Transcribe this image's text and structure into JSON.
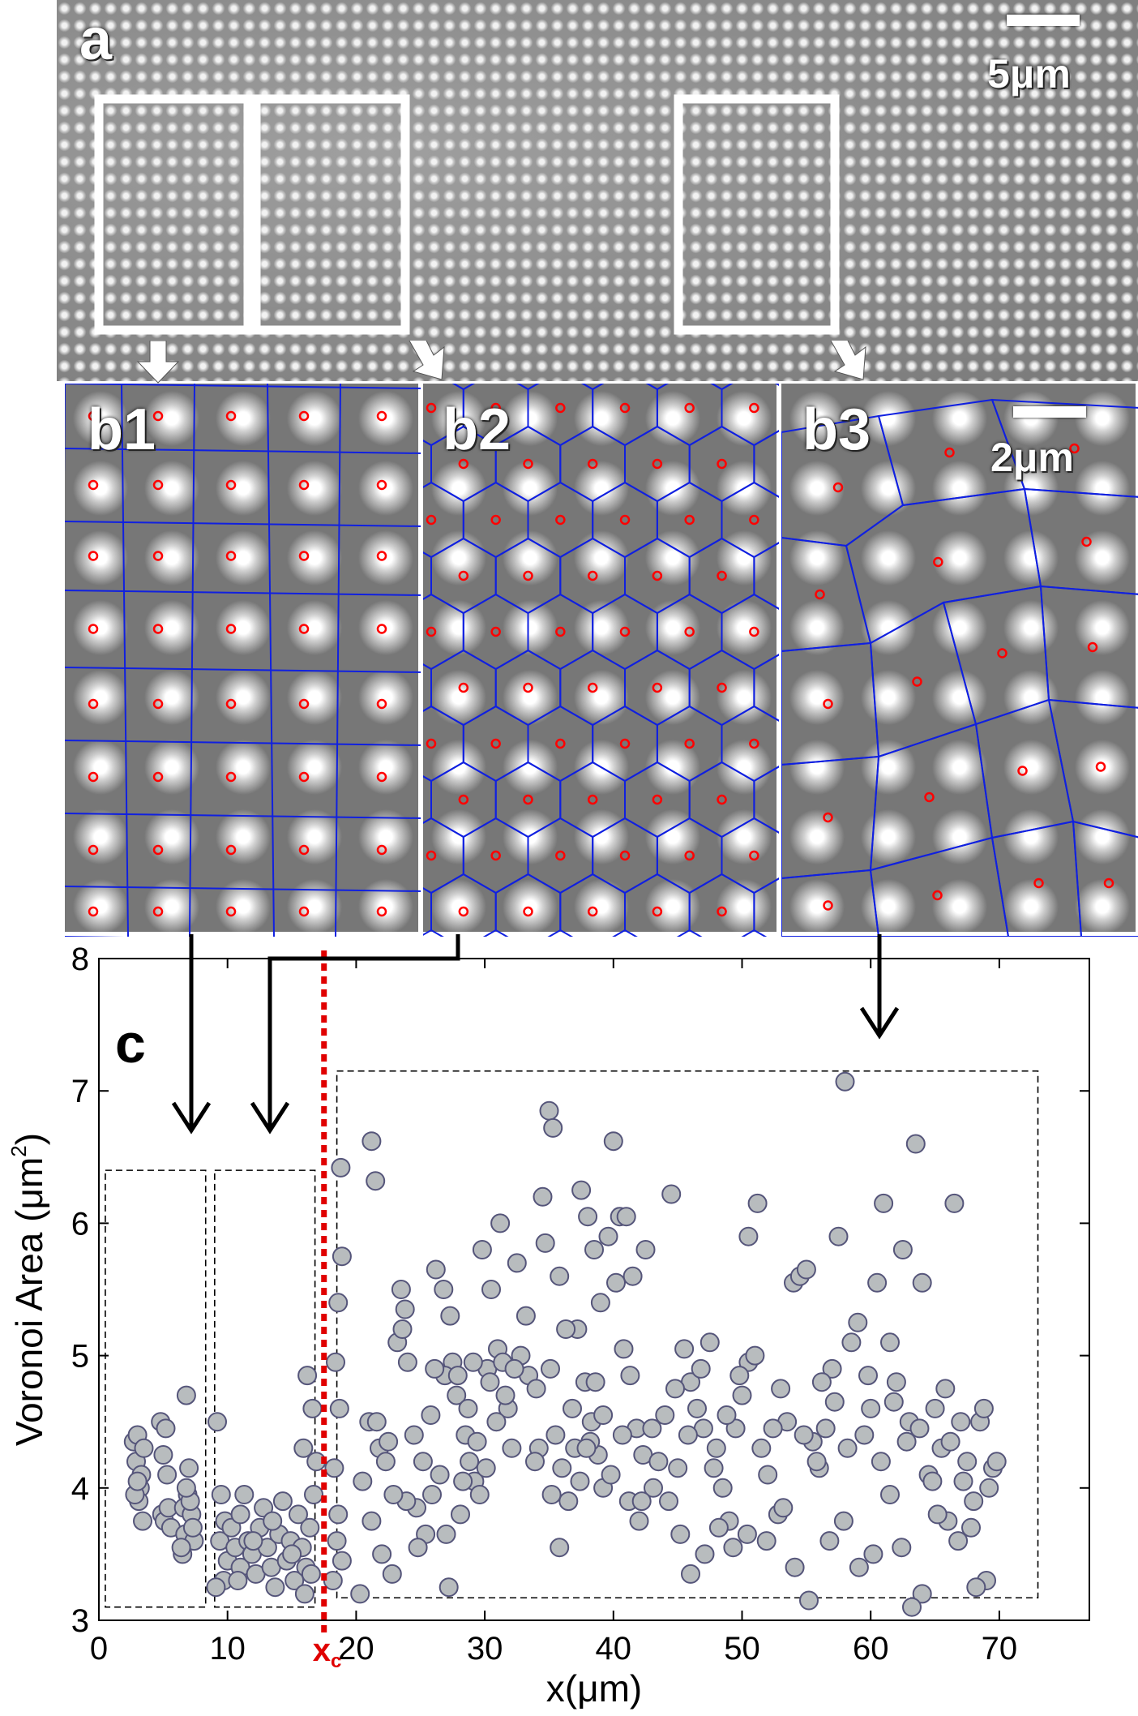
{
  "panel_a": {
    "label": "a",
    "scale_label": "5μm"
  },
  "panel_b": {
    "labels": [
      "b1",
      "b2",
      "b3"
    ],
    "scale_label": "2μm"
  },
  "panel_c": {
    "label": "c",
    "xc_label": "x",
    "xc_subscript": "c"
  },
  "colors": {
    "marker_fill": "#b8bcbe",
    "marker_edge": "#55557a",
    "xc_line": "#e00000",
    "voronoi_edge": "#1020e0",
    "center_marker": "#ff0000"
  },
  "chart_data": {
    "type": "scatter",
    "xlabel": "x(μm)",
    "ylabel_main": "Voronoi Area (μm",
    "ylabel_sup": "2",
    "ylabel_close": ")",
    "xlim": [
      0,
      77
    ],
    "ylim": [
      3,
      8
    ],
    "xticks": [
      0,
      10,
      20,
      30,
      40,
      50,
      60,
      70
    ],
    "yticks": [
      3,
      4,
      5,
      6,
      7,
      8
    ],
    "xc": 17.5,
    "regions": [
      {
        "x": [
          0.5,
          8.3
        ],
        "y": [
          3.1,
          6.4
        ]
      },
      {
        "x": [
          9.0,
          16.8
        ],
        "y": [
          3.1,
          6.4
        ]
      },
      {
        "x": [
          18.5,
          73.0
        ],
        "y": [
          3.17,
          7.15
        ]
      }
    ],
    "points": [
      [
        2.7,
        4.35
      ],
      [
        3.0,
        4.4
      ],
      [
        2.9,
        4.2
      ],
      [
        3.2,
        4.0
      ],
      [
        3.1,
        3.9
      ],
      [
        3.4,
        3.75
      ],
      [
        3.3,
        4.1
      ],
      [
        2.8,
        3.95
      ],
      [
        3.5,
        4.3
      ],
      [
        3.0,
        4.05
      ],
      [
        4.8,
        4.5
      ],
      [
        5.2,
        4.45
      ],
      [
        4.9,
        3.8
      ],
      [
        5.1,
        3.75
      ],
      [
        5.4,
        3.85
      ],
      [
        5.6,
        3.7
      ],
      [
        5.0,
        4.25
      ],
      [
        5.3,
        4.1
      ],
      [
        6.8,
        4.7
      ],
      [
        7.0,
        4.15
      ],
      [
        6.9,
        3.95
      ],
      [
        6.6,
        3.85
      ],
      [
        7.2,
        3.8
      ],
      [
        6.7,
        3.65
      ],
      [
        6.5,
        3.5
      ],
      [
        7.4,
        3.6
      ],
      [
        7.1,
        3.9
      ],
      [
        6.4,
        3.55
      ],
      [
        7.3,
        3.7
      ],
      [
        6.8,
        4.0
      ],
      [
        9.2,
        4.5
      ],
      [
        9.5,
        3.95
      ],
      [
        9.8,
        3.75
      ],
      [
        9.4,
        3.6
      ],
      [
        10.0,
        3.45
      ],
      [
        9.7,
        3.3
      ],
      [
        10.3,
        3.7
      ],
      [
        9.1,
        3.25
      ],
      [
        10.6,
        3.55
      ],
      [
        11.0,
        3.4
      ],
      [
        11.3,
        3.95
      ],
      [
        11.0,
        3.8
      ],
      [
        11.6,
        3.6
      ],
      [
        11.9,
        3.5
      ],
      [
        12.2,
        3.35
      ],
      [
        12.5,
        3.7
      ],
      [
        12.8,
        3.85
      ],
      [
        13.1,
        3.55
      ],
      [
        13.4,
        3.4
      ],
      [
        13.7,
        3.25
      ],
      [
        14.0,
        3.65
      ],
      [
        14.3,
        3.9
      ],
      [
        14.6,
        3.45
      ],
      [
        14.9,
        3.6
      ],
      [
        15.2,
        3.3
      ],
      [
        15.5,
        3.8
      ],
      [
        15.8,
        3.55
      ],
      [
        16.1,
        3.4
      ],
      [
        16.4,
        3.7
      ],
      [
        16.7,
        3.95
      ],
      [
        16.2,
        4.85
      ],
      [
        16.6,
        4.6
      ],
      [
        16.9,
        4.2
      ],
      [
        15.9,
        4.3
      ],
      [
        16.5,
        3.35
      ],
      [
        16.0,
        3.2
      ],
      [
        15.0,
        3.5
      ],
      [
        13.5,
        3.75
      ],
      [
        12.0,
        3.6
      ],
      [
        10.8,
        3.3
      ],
      [
        18.8,
        6.42
      ],
      [
        18.9,
        5.75
      ],
      [
        18.6,
        5.4
      ],
      [
        18.4,
        4.95
      ],
      [
        18.7,
        4.6
      ],
      [
        18.3,
        4.15
      ],
      [
        18.5,
        3.6
      ],
      [
        18.2,
        3.3
      ],
      [
        18.9,
        3.45
      ],
      [
        18.6,
        3.8
      ],
      [
        21.2,
        6.62
      ],
      [
        21.5,
        6.32
      ],
      [
        23.5,
        5.5
      ],
      [
        23.8,
        5.35
      ],
      [
        23.2,
        5.1
      ],
      [
        24.0,
        4.95
      ],
      [
        23.6,
        5.2
      ],
      [
        21.0,
        4.5
      ],
      [
        21.8,
        4.3
      ],
      [
        22.5,
        4.35
      ],
      [
        20.5,
        4.05
      ],
      [
        21.2,
        3.75
      ],
      [
        22.0,
        3.5
      ],
      [
        22.8,
        3.35
      ],
      [
        20.3,
        3.2
      ],
      [
        24.5,
        4.4
      ],
      [
        25.2,
        4.2
      ],
      [
        25.8,
        4.55
      ],
      [
        26.5,
        4.1
      ],
      [
        27.0,
        3.65
      ],
      [
        26.2,
        5.65
      ],
      [
        26.8,
        5.5
      ],
      [
        27.3,
        5.3
      ],
      [
        27.5,
        4.95
      ],
      [
        26.9,
        4.85
      ],
      [
        27.8,
        4.7
      ],
      [
        26.1,
        4.9
      ],
      [
        28.5,
        4.4
      ],
      [
        28.8,
        4.2
      ],
      [
        29.2,
        4.05
      ],
      [
        28.1,
        3.8
      ],
      [
        29.6,
        3.95
      ],
      [
        27.2,
        3.25
      ],
      [
        29.8,
        5.8
      ],
      [
        30.5,
        5.5
      ],
      [
        31.0,
        5.05
      ],
      [
        30.2,
        4.9
      ],
      [
        31.4,
        4.95
      ],
      [
        31.8,
        4.6
      ],
      [
        32.1,
        4.3
      ],
      [
        31.2,
        6.0
      ],
      [
        32.5,
        5.7
      ],
      [
        32.8,
        5.0
      ],
      [
        33.4,
        4.85
      ],
      [
        34.0,
        4.75
      ],
      [
        34.5,
        6.2
      ],
      [
        35.0,
        6.85
      ],
      [
        35.3,
        6.72
      ],
      [
        34.7,
        5.85
      ],
      [
        35.8,
        5.6
      ],
      [
        34.2,
        4.3
      ],
      [
        35.5,
        4.4
      ],
      [
        36.0,
        4.15
      ],
      [
        35.2,
        3.95
      ],
      [
        35.8,
        3.55
      ],
      [
        36.5,
        3.9
      ],
      [
        37.0,
        4.3
      ],
      [
        37.5,
        6.25
      ],
      [
        38.0,
        6.05
      ],
      [
        38.5,
        5.8
      ],
      [
        37.2,
        5.2
      ],
      [
        37.8,
        4.8
      ],
      [
        38.3,
        4.5
      ],
      [
        38.8,
        4.25
      ],
      [
        39.2,
        4.0
      ],
      [
        39.6,
        5.9
      ],
      [
        40.0,
        6.62
      ],
      [
        40.5,
        6.05
      ],
      [
        41.0,
        6.05
      ],
      [
        41.5,
        5.6
      ],
      [
        40.2,
        5.55
      ],
      [
        40.8,
        5.05
      ],
      [
        41.3,
        4.85
      ],
      [
        41.8,
        4.45
      ],
      [
        42.3,
        4.25
      ],
      [
        41.2,
        3.9
      ],
      [
        42.0,
        3.75
      ],
      [
        39.0,
        5.4
      ],
      [
        38.2,
        4.35
      ],
      [
        37.4,
        4.05
      ],
      [
        42.5,
        5.8
      ],
      [
        43.0,
        4.45
      ],
      [
        43.5,
        4.2
      ],
      [
        44.0,
        4.55
      ],
      [
        44.5,
        6.22
      ],
      [
        45.0,
        4.15
      ],
      [
        45.5,
        5.05
      ],
      [
        46.0,
        4.8
      ],
      [
        46.5,
        4.6
      ],
      [
        47.0,
        4.45
      ],
      [
        47.5,
        5.1
      ],
      [
        48.0,
        4.3
      ],
      [
        48.5,
        4.0
      ],
      [
        49.0,
        3.75
      ],
      [
        49.5,
        4.45
      ],
      [
        50.0,
        4.7
      ],
      [
        50.5,
        4.95
      ],
      [
        51.0,
        5.0
      ],
      [
        51.5,
        4.3
      ],
      [
        52.0,
        4.1
      ],
      [
        51.2,
        6.15
      ],
      [
        50.5,
        5.9
      ],
      [
        53.0,
        4.75
      ],
      [
        53.5,
        4.5
      ],
      [
        54.0,
        5.55
      ],
      [
        54.5,
        5.6
      ],
      [
        55.0,
        5.65
      ],
      [
        55.5,
        4.35
      ],
      [
        56.0,
        4.15
      ],
      [
        56.5,
        4.45
      ],
      [
        57.0,
        4.9
      ],
      [
        57.5,
        5.9
      ],
      [
        58.0,
        7.07
      ],
      [
        58.5,
        5.1
      ],
      [
        59.0,
        5.25
      ],
      [
        59.5,
        4.4
      ],
      [
        60.0,
        4.6
      ],
      [
        60.5,
        5.55
      ],
      [
        61.0,
        6.15
      ],
      [
        61.5,
        5.1
      ],
      [
        62.0,
        4.8
      ],
      [
        62.5,
        5.8
      ],
      [
        63.0,
        4.5
      ],
      [
        63.5,
        6.6
      ],
      [
        64.0,
        5.55
      ],
      [
        64.5,
        4.1
      ],
      [
        65.0,
        4.6
      ],
      [
        65.5,
        4.3
      ],
      [
        66.0,
        3.75
      ],
      [
        66.5,
        6.15
      ],
      [
        67.0,
        4.5
      ],
      [
        67.5,
        4.2
      ],
      [
        68.0,
        3.9
      ],
      [
        68.5,
        4.5
      ],
      [
        69.0,
        3.3
      ],
      [
        69.5,
        4.15
      ],
      [
        68.2,
        3.25
      ],
      [
        66.8,
        3.6
      ],
      [
        65.2,
        3.8
      ],
      [
        64.0,
        3.2
      ],
      [
        63.2,
        3.1
      ],
      [
        62.4,
        3.55
      ],
      [
        61.5,
        3.95
      ],
      [
        60.2,
        3.5
      ],
      [
        59.1,
        3.4
      ],
      [
        57.9,
        3.75
      ],
      [
        56.8,
        3.6
      ],
      [
        55.2,
        3.15
      ],
      [
        54.1,
        3.4
      ],
      [
        52.8,
        3.8
      ],
      [
        51.9,
        3.6
      ],
      [
        50.4,
        3.65
      ],
      [
        49.3,
        3.55
      ],
      [
        48.2,
        3.7
      ],
      [
        47.1,
        3.5
      ],
      [
        46.0,
        3.35
      ],
      [
        45.2,
        3.65
      ],
      [
        44.3,
        3.9
      ],
      [
        43.1,
        4.0
      ],
      [
        42.2,
        3.9
      ],
      [
        40.7,
        4.4
      ],
      [
        39.8,
        4.1
      ],
      [
        39.2,
        4.55
      ],
      [
        38.6,
        4.8
      ],
      [
        37.9,
        4.3
      ],
      [
        36.8,
        4.6
      ],
      [
        36.3,
        5.2
      ],
      [
        35.1,
        4.9
      ],
      [
        33.9,
        4.2
      ],
      [
        33.2,
        5.3
      ],
      [
        32.3,
        4.9
      ],
      [
        31.6,
        4.7
      ],
      [
        30.9,
        4.5
      ],
      [
        30.1,
        4.15
      ],
      [
        29.4,
        4.35
      ],
      [
        28.7,
        4.6
      ],
      [
        27.9,
        4.85
      ],
      [
        25.4,
        3.65
      ],
      [
        24.7,
        3.85
      ],
      [
        23.9,
        3.9
      ],
      [
        22.9,
        3.95
      ],
      [
        22.3,
        4.2
      ],
      [
        21.6,
        4.5
      ],
      [
        24.8,
        3.55
      ],
      [
        25.9,
        3.95
      ],
      [
        28.3,
        4.05
      ],
      [
        29.1,
        4.95
      ],
      [
        30.4,
        4.8
      ],
      [
        44.8,
        4.75
      ],
      [
        45.8,
        4.4
      ],
      [
        46.8,
        4.9
      ],
      [
        47.8,
        4.15
      ],
      [
        48.8,
        4.55
      ],
      [
        49.8,
        4.85
      ],
      [
        52.4,
        4.45
      ],
      [
        53.2,
        3.85
      ],
      [
        54.8,
        4.4
      ],
      [
        55.8,
        4.2
      ],
      [
        56.2,
        4.8
      ],
      [
        57.2,
        4.65
      ],
      [
        58.2,
        4.3
      ],
      [
        59.8,
        4.85
      ],
      [
        60.8,
        4.2
      ],
      [
        61.8,
        4.65
      ],
      [
        62.8,
        4.35
      ],
      [
        63.8,
        4.45
      ],
      [
        64.8,
        4.05
      ],
      [
        65.8,
        4.75
      ],
      [
        66.2,
        4.35
      ],
      [
        67.2,
        4.05
      ],
      [
        68.8,
        4.6
      ],
      [
        69.2,
        4.0
      ],
      [
        67.8,
        3.7
      ],
      [
        69.8,
        4.2
      ]
    ]
  }
}
